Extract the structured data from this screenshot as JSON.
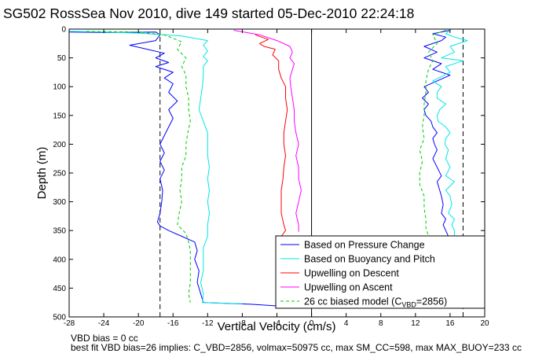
{
  "chart_data": {
    "type": "line",
    "title": "SG502 RossSea Nov 2010, dive 149 started 05-Dec-2010 22:24:18",
    "xlabel": "Vertical Velocity (cm/s)",
    "ylabel": "Depth (m)",
    "xlim": [
      -28,
      20
    ],
    "ylim": [
      0,
      500
    ],
    "y_reversed": true,
    "xticks": [
      "-28",
      "-24",
      "-20",
      "-16",
      "-12",
      "-8",
      "-4",
      "0",
      "4",
      "8",
      "12",
      "16",
      "20"
    ],
    "yticks": [
      "0",
      "50",
      "100",
      "150",
      "200",
      "250",
      "300",
      "350",
      "400",
      "450",
      "500"
    ],
    "grid": false,
    "legend_position": "bottom-right",
    "reference_lines": {
      "dashed_vertical_x": [
        -17.5,
        17.5
      ],
      "solid_vertical_x": [
        0
      ]
    },
    "series": [
      {
        "name": "Based on Pressure Change",
        "color": "#0000ff",
        "style": "solid",
        "points": [
          [
            -28,
            5
          ],
          [
            -23,
            6
          ],
          [
            -18,
            5
          ],
          [
            -17.5,
            10
          ],
          [
            -18,
            20
          ],
          [
            -21,
            28
          ],
          [
            -19,
            35
          ],
          [
            -17,
            42
          ],
          [
            -18,
            50
          ],
          [
            -16.5,
            58
          ],
          [
            -18,
            65
          ],
          [
            -16,
            75
          ],
          [
            -17,
            85
          ],
          [
            -16,
            95
          ],
          [
            -16.5,
            110
          ],
          [
            -15.5,
            125
          ],
          [
            -16.5,
            140
          ],
          [
            -16,
            155
          ],
          [
            -16.5,
            170
          ],
          [
            -17,
            185
          ],
          [
            -17.5,
            200
          ],
          [
            -17,
            215
          ],
          [
            -17.5,
            230
          ],
          [
            -17,
            245
          ],
          [
            -17.5,
            260
          ],
          [
            -17.2,
            280
          ],
          [
            -17.3,
            300
          ],
          [
            -17.5,
            320
          ],
          [
            -17.8,
            335
          ],
          [
            -17.5,
            342
          ],
          [
            -16.5,
            350
          ],
          [
            -15,
            360
          ],
          [
            -13.5,
            370
          ],
          [
            -13.2,
            385
          ],
          [
            -13.5,
            400
          ],
          [
            -13,
            420
          ],
          [
            -13.2,
            440
          ],
          [
            -12.8,
            460
          ],
          [
            -12.5,
            475
          ],
          [
            -7,
            478
          ],
          [
            -3,
            482
          ]
        ]
      },
      {
        "name": "Based on Buoyancy and Pitch",
        "color": "#00e6e6",
        "style": "solid",
        "points": [
          [
            -28,
            4
          ],
          [
            -24,
            5
          ],
          [
            -20,
            7
          ],
          [
            -15,
            12
          ],
          [
            -12,
            20
          ],
          [
            -12.5,
            28
          ],
          [
            -12,
            38
          ],
          [
            -12.5,
            48
          ],
          [
            -12,
            55
          ],
          [
            -12.5,
            65
          ],
          [
            -12.5,
            80
          ],
          [
            -12.6,
            100
          ],
          [
            -12.8,
            120
          ],
          [
            -13,
            140
          ],
          [
            -12.5,
            160
          ],
          [
            -12,
            180
          ],
          [
            -12,
            200
          ],
          [
            -12,
            220
          ],
          [
            -11.8,
            240
          ],
          [
            -12,
            260
          ],
          [
            -11.8,
            280
          ],
          [
            -12,
            300
          ],
          [
            -11.8,
            320
          ],
          [
            -12,
            340
          ],
          [
            -12,
            350
          ],
          [
            -12,
            360
          ],
          [
            -12.5,
            380
          ],
          [
            -12.5,
            400
          ],
          [
            -12.5,
            420
          ],
          [
            -12.8,
            440
          ],
          [
            -12.5,
            460
          ],
          [
            -12.6,
            475
          ],
          [
            -8,
            477
          ]
        ]
      },
      {
        "name": "Upwelling on Descent",
        "color": "#ff0000",
        "style": "solid",
        "points": [
          [
            -6.5,
            10
          ],
          [
            -5,
            18
          ],
          [
            -6,
            25
          ],
          [
            -5.5,
            30
          ],
          [
            -4.2,
            35
          ],
          [
            -4.5,
            45
          ],
          [
            -3.8,
            55
          ],
          [
            -3.8,
            70
          ],
          [
            -3.5,
            85
          ],
          [
            -3,
            100
          ],
          [
            -3,
            120
          ],
          [
            -2.8,
            140
          ],
          [
            -3,
            160
          ],
          [
            -3.2,
            180
          ],
          [
            -3.2,
            200
          ],
          [
            -3,
            220
          ],
          [
            -3.2,
            240
          ],
          [
            -3.3,
            260
          ],
          [
            -3.5,
            280
          ],
          [
            -3.5,
            300
          ],
          [
            -3.5,
            320
          ],
          [
            -3.2,
            340
          ],
          [
            -3,
            350
          ],
          [
            -3.5,
            360
          ]
        ]
      },
      {
        "name": "Upwelling on Ascent",
        "color": "#ff00ff",
        "style": "solid",
        "points": [
          [
            -9,
            2
          ],
          [
            -6,
            10
          ],
          [
            -4,
            20
          ],
          [
            -2.5,
            30
          ],
          [
            -2.2,
            40
          ],
          [
            -2.5,
            50
          ],
          [
            -2,
            60
          ],
          [
            -2.2,
            70
          ],
          [
            -2.5,
            85
          ],
          [
            -2.4,
            100
          ],
          [
            -2.2,
            120
          ],
          [
            -2,
            140
          ],
          [
            -2,
            160
          ],
          [
            -1.8,
            180
          ],
          [
            -1.5,
            200
          ],
          [
            -1.8,
            220
          ],
          [
            -1.5,
            240
          ],
          [
            -1.5,
            260
          ],
          [
            -1.2,
            280
          ],
          [
            -1.5,
            300
          ],
          [
            -1.8,
            320
          ],
          [
            -1.5,
            340
          ],
          [
            -1.5,
            352
          ]
        ]
      },
      {
        "name": "26 cc biased model (C_VBD=2856)",
        "label_main": "26 cc biased model (C",
        "label_sub": "VBD",
        "label_tail": "=2856)",
        "color": "#00cc00",
        "style": "dashed",
        "points": [
          [
            -26,
            4
          ],
          [
            -20,
            5
          ],
          [
            -17,
            10
          ],
          [
            -15,
            22
          ],
          [
            -15.5,
            35
          ],
          [
            -14.5,
            50
          ],
          [
            -15,
            65
          ],
          [
            -14.5,
            80
          ],
          [
            -14.5,
            100
          ],
          [
            -14.2,
            120
          ],
          [
            -14.2,
            140
          ],
          [
            -14,
            160
          ],
          [
            -14.3,
            180
          ],
          [
            -14.5,
            200
          ],
          [
            -14.5,
            220
          ],
          [
            -15,
            240
          ],
          [
            -15,
            260
          ],
          [
            -15.2,
            280
          ],
          [
            -15,
            300
          ],
          [
            -15.3,
            320
          ],
          [
            -15.5,
            340
          ],
          [
            -14.5,
            355
          ],
          [
            -14.2,
            370
          ],
          [
            -14,
            385
          ],
          [
            -14,
            400
          ],
          [
            -14,
            420
          ],
          [
            -14,
            440
          ],
          [
            -14.2,
            460
          ],
          [
            -14,
            475
          ]
        ]
      }
    ],
    "ascent_traces": [
      {
        "of_series": "Based on Pressure Change",
        "color": "#0000ff",
        "style": "solid",
        "points": [
          [
            16,
            2
          ],
          [
            14,
            8
          ],
          [
            15.5,
            14
          ],
          [
            15,
            20
          ],
          [
            13,
            30
          ],
          [
            14.5,
            40
          ],
          [
            13,
            50
          ],
          [
            15,
            60
          ],
          [
            14,
            70
          ],
          [
            16,
            80
          ],
          [
            14.5,
            90
          ],
          [
            13,
            100
          ],
          [
            13.5,
            110
          ],
          [
            12.8,
            120
          ],
          [
            13.5,
            130
          ],
          [
            13,
            140
          ],
          [
            13.2,
            150
          ],
          [
            13.8,
            160
          ],
          [
            14,
            170
          ],
          [
            14.5,
            180
          ],
          [
            14,
            190
          ],
          [
            14.2,
            200
          ],
          [
            14.5,
            210
          ],
          [
            14,
            225
          ],
          [
            14.5,
            240
          ],
          [
            15,
            255
          ],
          [
            14.5,
            265
          ],
          [
            14.8,
            280
          ],
          [
            15,
            290
          ],
          [
            15.2,
            305
          ],
          [
            15,
            320
          ],
          [
            15.5,
            330
          ],
          [
            15.2,
            340
          ],
          [
            15.5,
            350
          ],
          [
            15.8,
            360
          ]
        ]
      },
      {
        "of_series": "Based on Buoyancy and Pitch",
        "color": "#00e6e6",
        "style": "solid",
        "points": [
          [
            16,
            2
          ],
          [
            15.5,
            8
          ],
          [
            16.5,
            14
          ],
          [
            18,
            20
          ],
          [
            16,
            30
          ],
          [
            16.5,
            40
          ],
          [
            15,
            50
          ],
          [
            17.5,
            55
          ],
          [
            15.5,
            65
          ],
          [
            16,
            75
          ],
          [
            14,
            90
          ],
          [
            15,
            100
          ],
          [
            14.5,
            110
          ],
          [
            14.5,
            120
          ],
          [
            15.5,
            130
          ],
          [
            14.8,
            140
          ],
          [
            14.5,
            150
          ],
          [
            14.6,
            160
          ],
          [
            15.5,
            170
          ],
          [
            16,
            180
          ],
          [
            15.5,
            190
          ],
          [
            15.4,
            200
          ],
          [
            15.8,
            210
          ],
          [
            15.5,
            225
          ],
          [
            16,
            240
          ],
          [
            15.5,
            255
          ],
          [
            16.5,
            265
          ],
          [
            15.5,
            280
          ],
          [
            16,
            290
          ],
          [
            16.2,
            305
          ],
          [
            15.8,
            320
          ],
          [
            16.5,
            330
          ],
          [
            16.2,
            340
          ],
          [
            16.5,
            350
          ],
          [
            16.5,
            360
          ]
        ]
      },
      {
        "of_series": "26 cc biased model (C_VBD=2856)",
        "color": "#00cc00",
        "style": "dashed",
        "points": [
          [
            15.5,
            2
          ],
          [
            14,
            10
          ],
          [
            14.5,
            25
          ],
          [
            13.5,
            40
          ],
          [
            14,
            55
          ],
          [
            13.5,
            70
          ],
          [
            13.2,
            90
          ],
          [
            13.2,
            110
          ],
          [
            13,
            130
          ],
          [
            13,
            150
          ],
          [
            12.8,
            170
          ],
          [
            13,
            190
          ],
          [
            12.5,
            210
          ],
          [
            12.8,
            230
          ],
          [
            12.5,
            250
          ],
          [
            12.5,
            270
          ],
          [
            13,
            290
          ],
          [
            13,
            310
          ],
          [
            13.2,
            330
          ],
          [
            13.2,
            345
          ],
          [
            13.5,
            360
          ]
        ]
      }
    ]
  },
  "notes": {
    "line1": "VBD bias = 0 cc",
    "line2": "best fit VBD bias=26 implies: C_VBD=2856, volmax=50975 cc, max SM_CC=598, max MAX_BUOY=233 cc"
  }
}
